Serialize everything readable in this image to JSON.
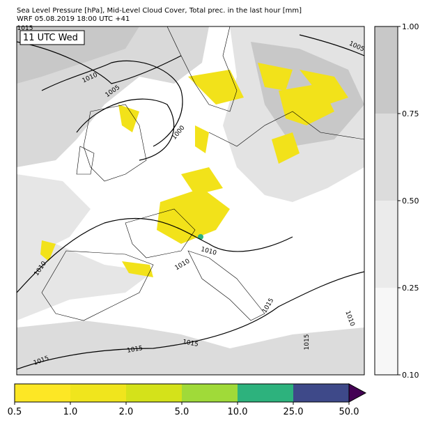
{
  "header": {
    "title": "Sea Level Pressure [hPa], Mid-Level Cloud Cover, Total prec. in the last hour [mm]",
    "subtitle": "WRF 05.08.2019 18:00 UTC +41"
  },
  "time_label": "11 UTC Wed",
  "contour_labels": [
    "1015",
    "1010",
    "1005",
    "1000",
    "1005",
    "1010",
    "1010",
    "1010",
    "1015",
    "1010",
    "1015",
    "1015",
    "1015",
    "1015"
  ],
  "cloud_colorbar": {
    "ticks": [
      {
        "value": 0.1,
        "label": "0.10"
      },
      0.25,
      {
        "value": 0.5,
        "label": "0.50"
      },
      0.75,
      {
        "value": 1.0,
        "label": "1.00"
      }
    ],
    "colors": [
      "#f7f7f7",
      "#ebebeb",
      "#dcdcdc",
      "#c8c8c8"
    ]
  },
  "precip_colorbar": {
    "ticks": [
      0.5,
      {
        "value": 1.0,
        "label": "1.0"
      },
      {
        "value": 2.0,
        "label": "2.0"
      },
      {
        "value": 5.0,
        "label": "5.0"
      },
      {
        "value": 10.0,
        "label": "10.0"
      },
      {
        "value": 25.0,
        "label": "25.0"
      },
      {
        "value": 50.0,
        "label": "50.0"
      }
    ],
    "colors": [
      "#fde725",
      "#f0e51d",
      "#d4e21a",
      "#a0da39",
      "#2db27d",
      "#3e4989"
    ],
    "extend_color": "#440154"
  }
}
